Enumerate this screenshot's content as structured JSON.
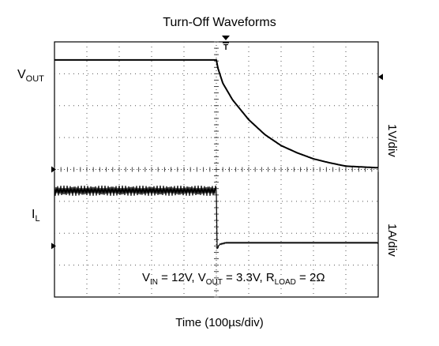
{
  "chart_data": {
    "type": "line",
    "title": "Turn-Off Waveforms",
    "xlabel": "Time (100µs/div)",
    "x_divisions": 10,
    "y_divisions": 8,
    "grid": true,
    "series": [
      {
        "name": "VOUT",
        "label_main": "V",
        "label_sub": "OUT",
        "scale": "1V/div",
        "unit": "V",
        "x_div": [
          0,
          5,
          5.05,
          5.2,
          5.5,
          6,
          6.5,
          7,
          7.5,
          8,
          8.5,
          9,
          10
        ],
        "y_volts": [
          3.3,
          3.3,
          3.05,
          2.6,
          2.1,
          1.5,
          1.05,
          0.72,
          0.5,
          0.32,
          0.2,
          0.1,
          0.05
        ]
      },
      {
        "name": "IL",
        "label_main": "I",
        "label_sub": "L",
        "scale": "1A/div",
        "unit": "A",
        "x_div": [
          0,
          5,
          5.02,
          5.1,
          5.3,
          10
        ],
        "y_amps": [
          1.7,
          1.7,
          -0.1,
          0.05,
          0.1,
          0.1
        ],
        "ripple_amps": 0.32
      }
    ],
    "annotation": {
      "vin_main": "V",
      "vin_sub": "IN",
      "vin_value": " = 12V, ",
      "vout_main": "V",
      "vout_sub": "OUT",
      "vout_value": " = 3.3V, ",
      "rload_main": "R",
      "rload_sub": "LOAD",
      "rload_value": " = 2Ω"
    },
    "trigger_marker": "T"
  }
}
